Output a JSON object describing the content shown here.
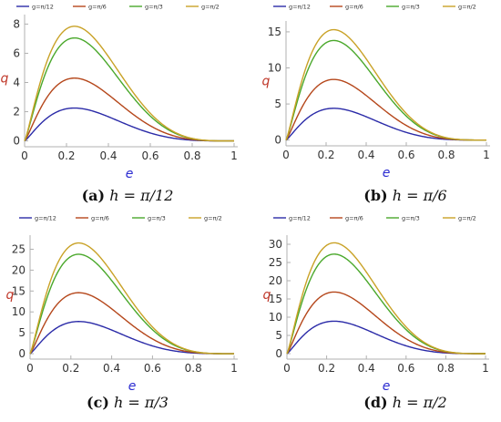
{
  "colors": {
    "axis": "#b0b0b0",
    "xlabel": "#2b2bd1",
    "ylabel": "#c0392b",
    "series": [
      "#2b2ba8",
      "#b5471b",
      "#4aa82b",
      "#c9a227"
    ]
  },
  "legend": [
    "g=π/12",
    "g=π/6",
    "g=π/3",
    "g=π/2"
  ],
  "chart_data": [
    {
      "type": "line",
      "xlabel": "e",
      "ylabel": "q",
      "caption_tag": "(a)",
      "caption_math": "h = π/12",
      "xlim": [
        0,
        1
      ],
      "ylim": [
        -0.4,
        8.4
      ],
      "xticks": [
        0,
        0.2,
        0.4,
        0.6,
        0.8,
        1
      ],
      "xtick_labels": [
        "0",
        "0.2",
        "0.4",
        "0.6",
        "0.8",
        "1"
      ],
      "yticks": [
        0,
        2,
        4,
        6,
        8
      ],
      "ytick_labels": [
        "0",
        "2",
        "4",
        "6",
        "8"
      ],
      "series": [
        {
          "name": "g=π/12",
          "peak": 2.25
        },
        {
          "name": "g=π/6",
          "peak": 4.3
        },
        {
          "name": "g=π/3",
          "peak": 7.05
        },
        {
          "name": "g=π/2",
          "peak": 7.85
        }
      ]
    },
    {
      "type": "line",
      "xlabel": "e",
      "ylabel": "q",
      "caption_tag": "(b)",
      "caption_math": "h = π/6",
      "xlim": [
        0,
        1
      ],
      "ylim": [
        -0.8,
        16
      ],
      "xticks": [
        0,
        0.2,
        0.4,
        0.6,
        0.8,
        1
      ],
      "xtick_labels": [
        "0",
        "0.2",
        "0.4",
        "0.6",
        "0.8",
        "1"
      ],
      "yticks": [
        0,
        5,
        10,
        15
      ],
      "ytick_labels": [
        "0",
        "5",
        "10",
        "15"
      ],
      "series": [
        {
          "name": "g=π/12",
          "peak": 4.4
        },
        {
          "name": "g=π/6",
          "peak": 8.4
        },
        {
          "name": "g=π/3",
          "peak": 13.8
        },
        {
          "name": "g=π/2",
          "peak": 15.3
        }
      ]
    },
    {
      "type": "line",
      "xlabel": "e",
      "ylabel": "q",
      "caption_tag": "(c)",
      "caption_math": "h = π/3",
      "xlim": [
        0,
        1
      ],
      "ylim": [
        -1.3,
        27.5
      ],
      "xticks": [
        0,
        0.2,
        0.4,
        0.6,
        0.8,
        1
      ],
      "xtick_labels": [
        "0",
        "0.2",
        "0.4",
        "0.6",
        "0.8",
        "1"
      ],
      "yticks": [
        0,
        5,
        10,
        15,
        20,
        25
      ],
      "ytick_labels": [
        "0",
        "5",
        "10",
        "15",
        "20",
        "25"
      ],
      "series": [
        {
          "name": "g=π/12",
          "peak": 7.7
        },
        {
          "name": "g=π/6",
          "peak": 14.6
        },
        {
          "name": "g=π/3",
          "peak": 23.8
        },
        {
          "name": "g=π/2",
          "peak": 26.5
        }
      ]
    },
    {
      "type": "line",
      "xlabel": "e",
      "ylabel": "q",
      "caption_tag": "(d)",
      "caption_math": "h = π/2",
      "xlim": [
        0,
        1
      ],
      "ylim": [
        -1.5,
        31.5
      ],
      "xticks": [
        0,
        0.2,
        0.4,
        0.6,
        0.8,
        1
      ],
      "xtick_labels": [
        "0",
        "0.2",
        "0.4",
        "0.6",
        "0.8",
        "1"
      ],
      "yticks": [
        0,
        5,
        10,
        15,
        20,
        25,
        30
      ],
      "ytick_labels": [
        "0",
        "5",
        "10",
        "15",
        "20",
        "25",
        "30"
      ],
      "series": [
        {
          "name": "g=π/12",
          "peak": 8.9
        },
        {
          "name": "g=π/6",
          "peak": 16.9
        },
        {
          "name": "g=π/3",
          "peak": 27.3
        },
        {
          "name": "g=π/2",
          "peak": 30.4
        }
      ]
    }
  ]
}
